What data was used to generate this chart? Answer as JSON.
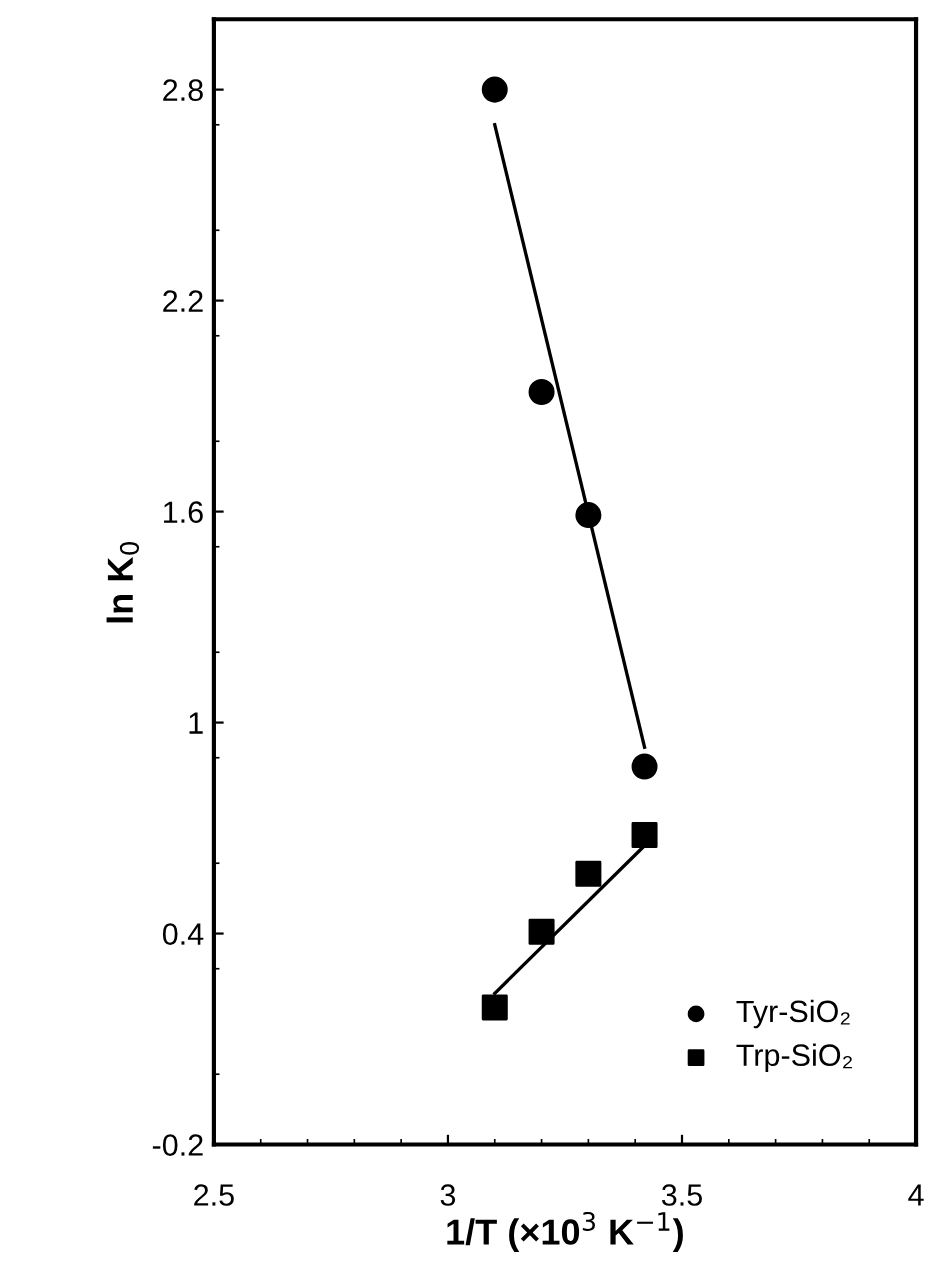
{
  "chart_data": {
    "type": "scatter",
    "xlabel": "1/T (×10$^{3}$ K$^{−1}$)",
    "ylabel": "ln K$_{0}$",
    "xlim": [
      2.5,
      4
    ],
    "xticks": [
      2.5,
      3,
      3.5,
      4
    ],
    "ylim": [
      -0.2,
      3.0
    ],
    "yticks": [
      -0.2,
      0.4,
      1,
      1.6,
      2.2,
      2.8
    ],
    "legend": "bottom right",
    "grid": false,
    "series": [
      {
        "name": "Tyr-SiO₂",
        "color": "#000000",
        "marker": "circle",
        "x": [
          3.1,
          3.2,
          3.3,
          3.42
        ],
        "values": [
          2.8,
          1.94,
          1.59,
          0.875
        ]
      },
      {
        "name": "Trp-SiO₂",
        "color": "#000000",
        "marker": "square",
        "x": [
          3.1,
          3.2,
          3.3,
          3.42
        ],
        "values": [
          0.19,
          0.405,
          0.57,
          0.68
        ]
      },
      {
        "type": "line",
        "color": "#000000",
        "x": [
          3.1,
          3.42
        ],
        "values": [
          2.7,
          0.93
        ]
      },
      {
        "type": "line",
        "color": "#000000",
        "x": [
          3.1,
          3.42
        ],
        "values": [
          0.23,
          0.65
        ]
      }
    ]
  }
}
